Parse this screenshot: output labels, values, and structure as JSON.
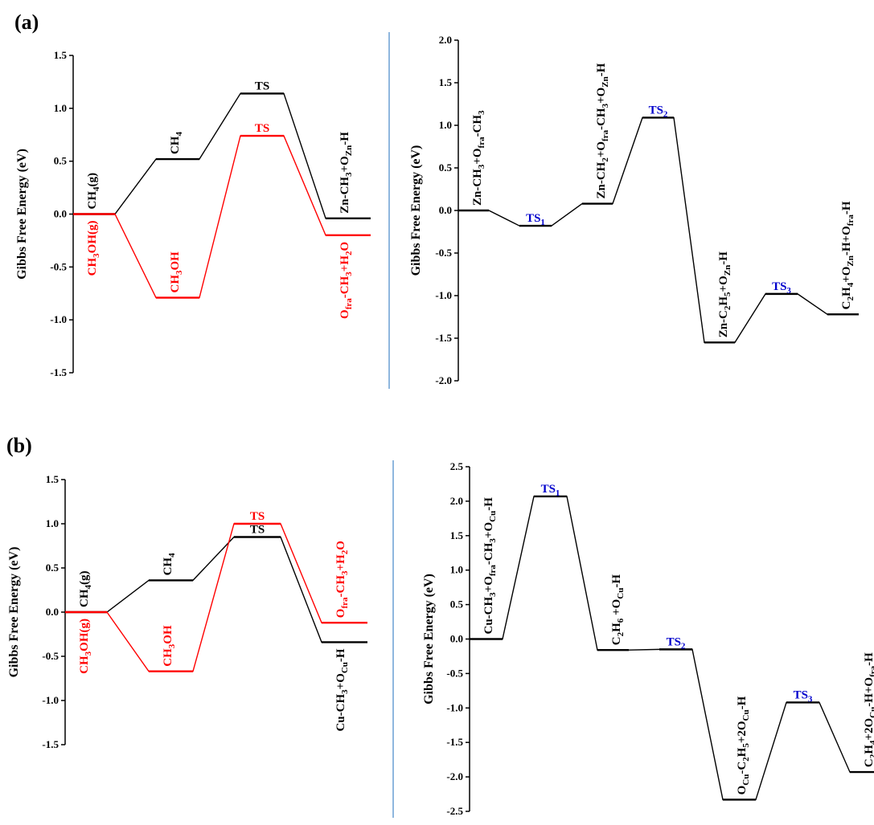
{
  "colors": {
    "black": "#000000",
    "red": "#ff0000",
    "blue": "#0000cc",
    "divider": "#6a9fd4"
  },
  "chart_data": [
    {
      "panel": "(a)",
      "type": "line",
      "ylabel": "Gibbs Free Energy (eV)",
      "ylim": [
        -1.5,
        1.5
      ],
      "yticks": [
        "1.5",
        "1.0",
        "0.5",
        "0.0",
        "-0.5",
        "-1.0",
        "-1.5"
      ],
      "series": [
        {
          "color": "black",
          "levels": [
            {
              "value": 0.0,
              "label": "CH4(g)",
              "pos": "above"
            },
            {
              "value": 0.52,
              "label": "CH4",
              "pos": "above"
            },
            {
              "value": 1.14,
              "label": "TS",
              "pos": "above",
              "horizontal": true
            },
            {
              "value": -0.04,
              "label": "Zn-CH3+OZn-H",
              "pos": "above"
            }
          ]
        },
        {
          "color": "red",
          "levels": [
            {
              "value": 0.0,
              "label": "CH3OH(g)",
              "pos": "below"
            },
            {
              "value": -0.79,
              "label": "CH3OH",
              "pos": "above"
            },
            {
              "value": 0.74,
              "label": "TS",
              "pos": "above",
              "horizontal": true
            },
            {
              "value": -0.2,
              "label": "Ofra-CH3+H2O",
              "pos": "below"
            }
          ]
        }
      ]
    },
    {
      "panel": "",
      "type": "line",
      "ylabel": "Gibbs Free Energy (eV)",
      "ylim": [
        -2.0,
        2.0
      ],
      "yticks": [
        "2.0",
        "1.5",
        "1.0",
        "0.5",
        "0.0",
        "-0.5",
        "-1.0",
        "-1.5",
        "-2.0"
      ],
      "series": [
        {
          "color": "black",
          "levels": [
            {
              "value": 0.0,
              "label": "Zn-CH3+Ofra-CH3",
              "pos": "above"
            },
            {
              "value": -0.18,
              "label": "TS1",
              "pos": "above",
              "horizontal": true,
              "labelColor": "blue"
            },
            {
              "value": 0.08,
              "label": "Zn-CH2+Ofra-CH3+OZn-H",
              "pos": "above"
            },
            {
              "value": 1.09,
              "label": "TS2",
              "pos": "above",
              "horizontal": true,
              "labelColor": "blue"
            },
            {
              "value": -1.55,
              "label": "Zn-C2H5+OZn-H",
              "pos": "above"
            },
            {
              "value": -0.98,
              "label": "TS3",
              "pos": "above",
              "horizontal": true,
              "labelColor": "blue"
            },
            {
              "value": -1.22,
              "label": "C2H4+OZn-H+Ofra-H",
              "pos": "above"
            }
          ]
        }
      ]
    },
    {
      "panel": "(b)",
      "type": "line",
      "ylabel": "Gibbs Free Energy (eV)",
      "ylim": [
        -1.5,
        1.5
      ],
      "yticks": [
        "1.5",
        "1.0",
        "0.5",
        "0.0",
        "-0.5",
        "-1.0",
        "-1.5"
      ],
      "series": [
        {
          "color": "black",
          "levels": [
            {
              "value": 0.0,
              "label": "CH4(g)",
              "pos": "above"
            },
            {
              "value": 0.36,
              "label": "CH4",
              "pos": "above"
            },
            {
              "value": 0.85,
              "label": "TS",
              "pos": "above",
              "horizontal": true
            },
            {
              "value": -0.34,
              "label": "Cu-CH3+OCu-H",
              "pos": "below"
            }
          ]
        },
        {
          "color": "red",
          "levels": [
            {
              "value": 0.0,
              "label": "CH3OH(g)",
              "pos": "below"
            },
            {
              "value": -0.67,
              "label": "CH3OH",
              "pos": "above"
            },
            {
              "value": 1.0,
              "label": "TS",
              "pos": "above",
              "horizontal": true
            },
            {
              "value": -0.12,
              "label": "Ofra-CH3+H2O",
              "pos": "above"
            }
          ]
        }
      ]
    },
    {
      "panel": "",
      "type": "line",
      "ylabel": "Gibbs Free Energy (eV)",
      "ylim": [
        -2.5,
        2.5
      ],
      "yticks": [
        "2.5",
        "2.0",
        "1.5",
        "1.0",
        "0.5",
        "0.0",
        "-0.5",
        "-1.0",
        "-1.5",
        "-2.0",
        "-2.5"
      ],
      "series": [
        {
          "color": "black",
          "levels": [
            {
              "value": 0.0,
              "label": "Cu-CH3+Ofra-CH3+OCu-H",
              "pos": "above"
            },
            {
              "value": 2.07,
              "label": "TS1",
              "pos": "above",
              "horizontal": true,
              "labelColor": "blue"
            },
            {
              "value": -0.16,
              "label": "C2H6 +OCu-H",
              "pos": "above"
            },
            {
              "value": -0.15,
              "label": "TS2",
              "pos": "above",
              "horizontal": true,
              "labelColor": "blue"
            },
            {
              "value": -2.33,
              "label": "OCu-C2H5+2OCu-H",
              "pos": "above"
            },
            {
              "value": -0.92,
              "label": "TS3",
              "pos": "above",
              "horizontal": true,
              "labelColor": "blue"
            },
            {
              "value": -1.93,
              "label": "C2H4+2OCu-H+Ofra-H",
              "pos": "above"
            }
          ]
        }
      ]
    }
  ]
}
